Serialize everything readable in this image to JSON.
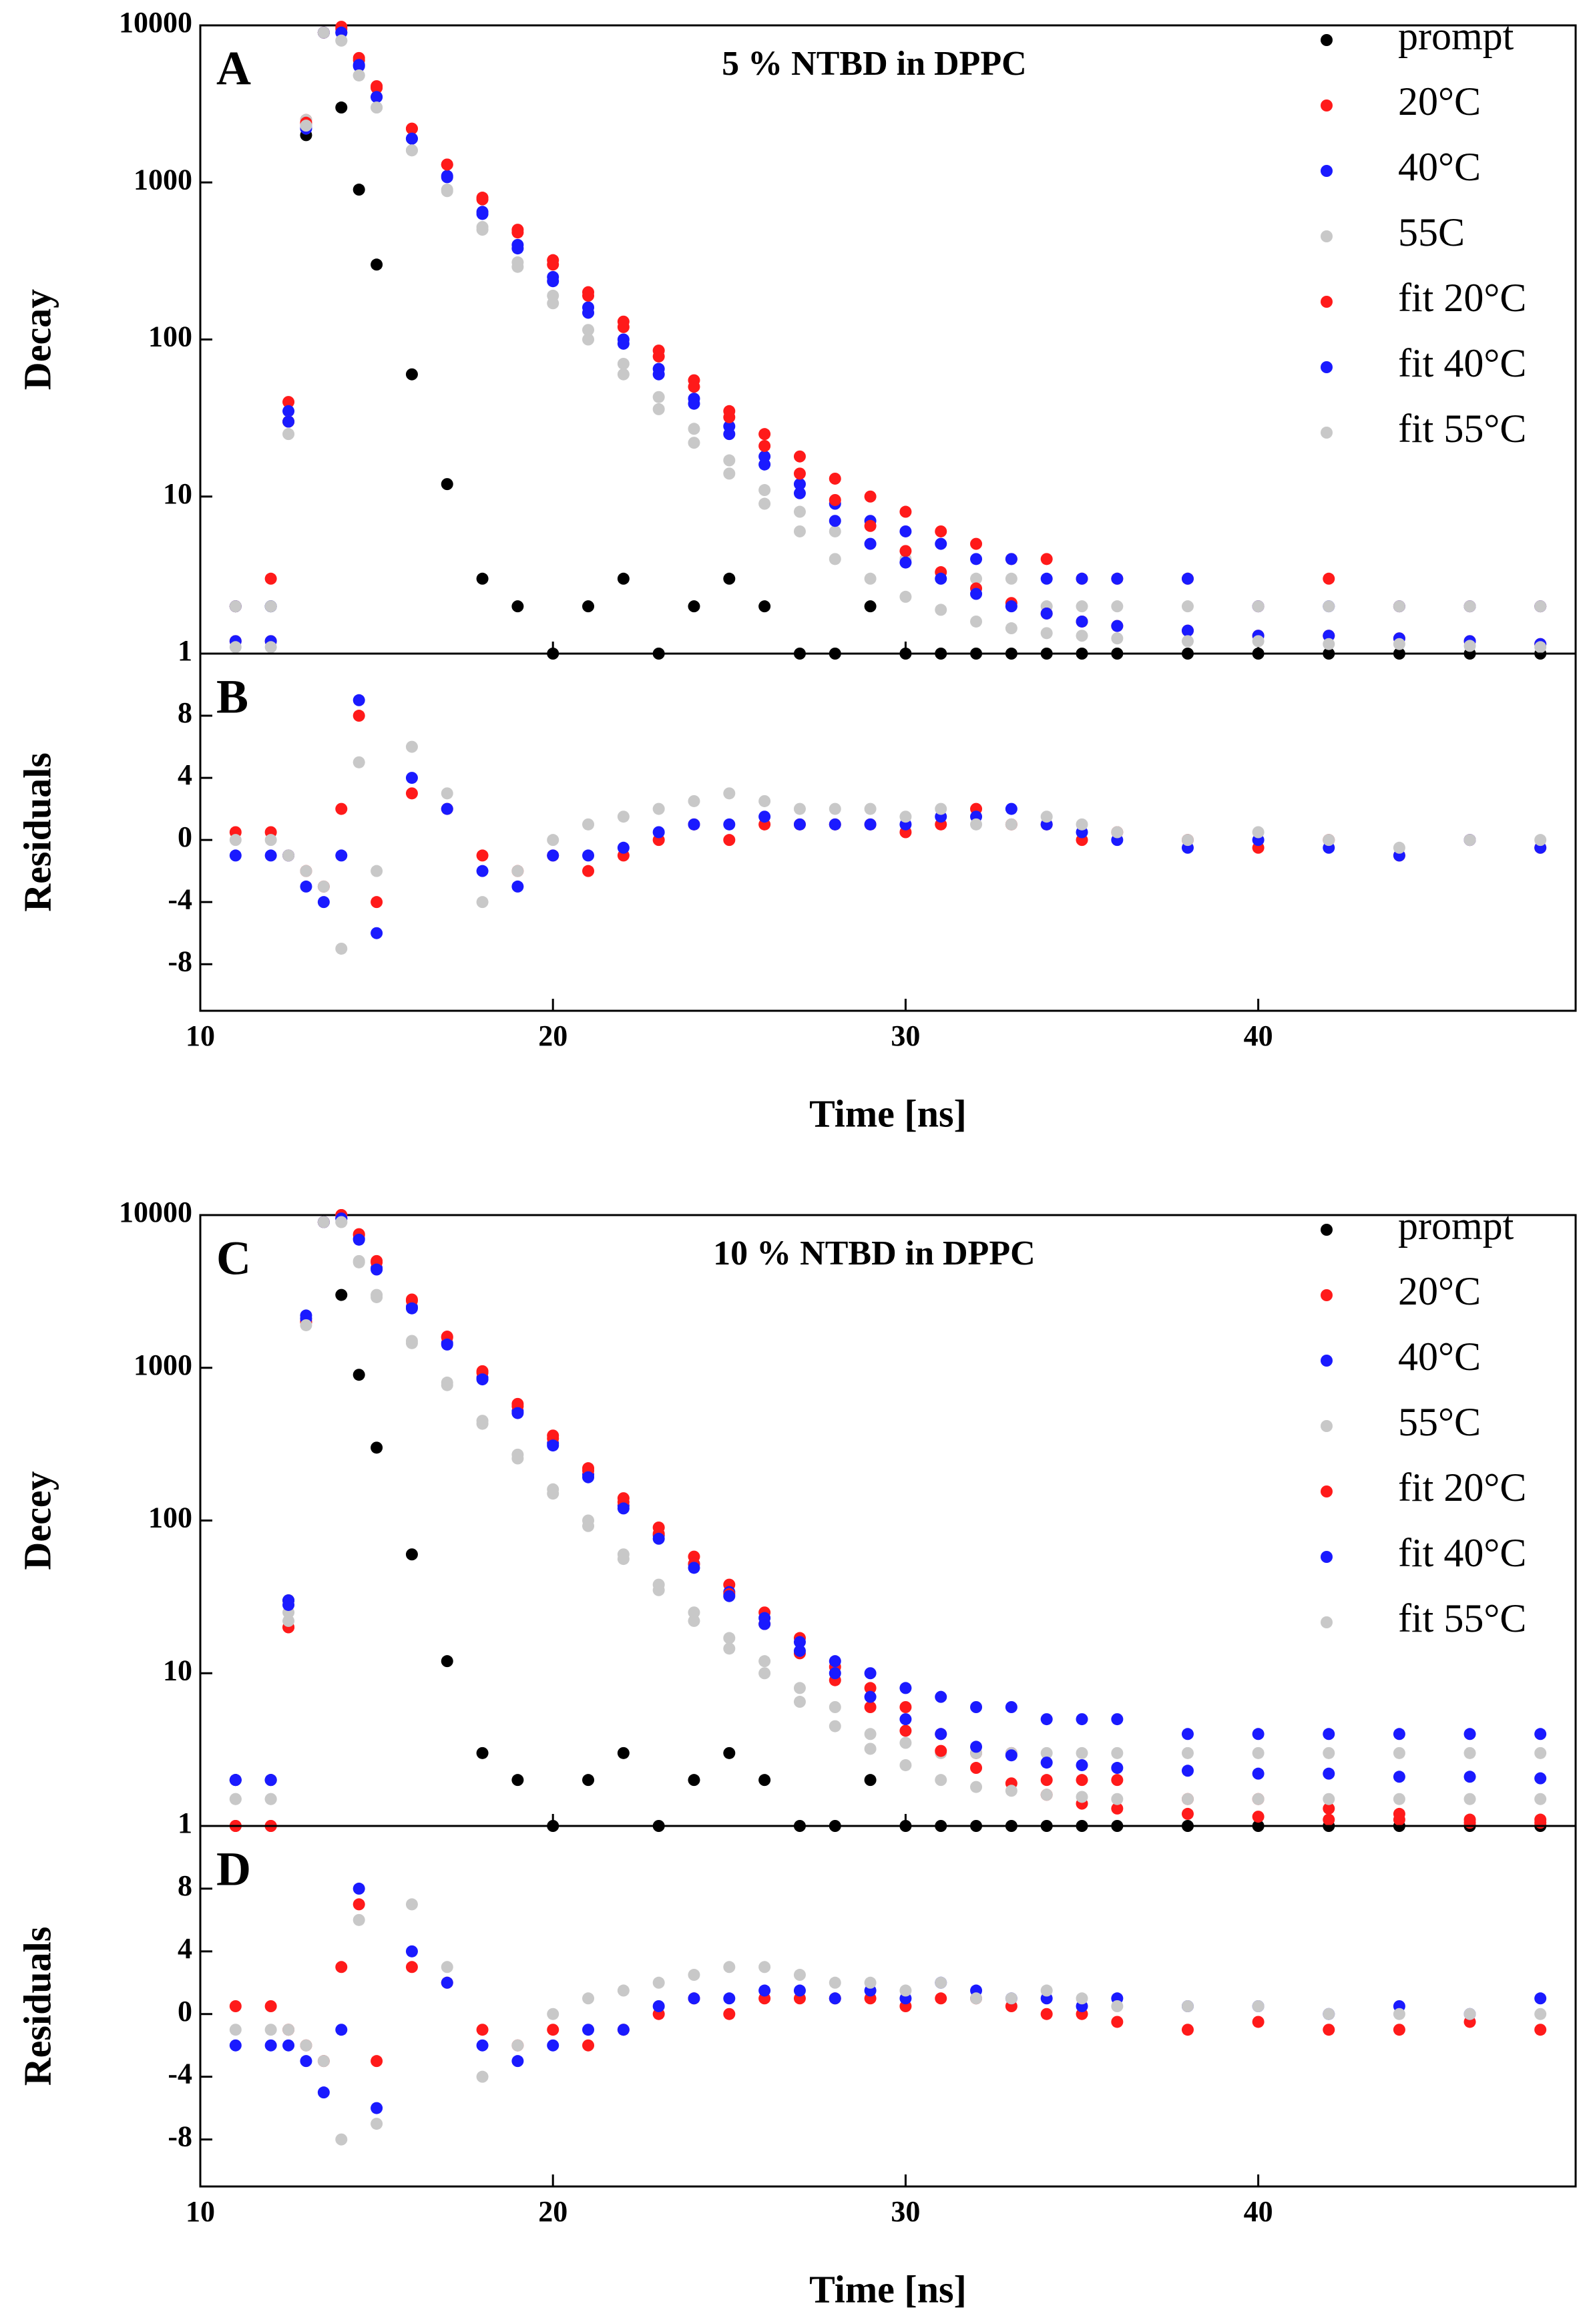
{
  "chart_data": [
    {
      "type": "scatter",
      "label": "A",
      "title": "5 % NTBD in DPPC",
      "ylabel": "Decay",
      "yscale": "log",
      "xlim": [
        10,
        49
      ],
      "xticks": [
        10,
        20,
        30,
        40
      ],
      "ylim": [
        1,
        10000
      ],
      "yticks": [
        1,
        10,
        100,
        1000,
        10000
      ],
      "legend": "upper right",
      "x": [
        11,
        12,
        12.5,
        13,
        13.5,
        14,
        14.5,
        15,
        16,
        17,
        18,
        19,
        20,
        21,
        22,
        23,
        24,
        25,
        26,
        27,
        28,
        29,
        30,
        31,
        32,
        33,
        34,
        35,
        36,
        38,
        40,
        42,
        44,
        46,
        48
      ],
      "series": [
        {
          "name": "prompt",
          "color": "#000000",
          "values": [
            2,
            2,
            30,
            2000,
            9000,
            3000,
            900,
            300,
            60,
            12,
            3,
            2,
            1,
            2,
            3,
            1,
            2,
            3,
            2,
            1,
            1,
            2,
            1,
            1,
            1,
            1,
            1,
            1,
            1,
            1,
            1,
            1,
            1,
            1,
            1
          ]
        },
        {
          "name": "20°C",
          "color": "#ff1a1a",
          "values": [
            2,
            3,
            40,
            2500,
            9000,
            9500,
            6000,
            4000,
            2200,
            1300,
            800,
            500,
            320,
            200,
            130,
            85,
            55,
            35,
            25,
            18,
            13,
            10,
            8,
            6,
            5,
            4,
            4,
            3,
            3,
            3,
            2,
            3,
            2,
            2,
            2
          ]
        },
        {
          "name": "40°C",
          "color": "#1a1aff",
          "values": [
            2,
            2,
            35,
            2300,
            9000,
            9000,
            5500,
            3500,
            1900,
            1100,
            650,
            400,
            250,
            160,
            100,
            65,
            42,
            28,
            18,
            12,
            9,
            7,
            6,
            5,
            4,
            4,
            3,
            3,
            3,
            3,
            2,
            2,
            2,
            2,
            2
          ]
        },
        {
          "name": "55C",
          "color": "#c8c8c8",
          "values": [
            2,
            2,
            30,
            2500,
            9000,
            8000,
            4800,
            3000,
            1600,
            900,
            520,
            310,
            190,
            115,
            70,
            43,
            27,
            17,
            11,
            8,
            6,
            5,
            4,
            3,
            3,
            3,
            2,
            2,
            2,
            2,
            2,
            2,
            2,
            2,
            2
          ]
        },
        {
          "name": "fit 20°C",
          "color": "#ff1a1a",
          "values": [
            1.2,
            1.2,
            30,
            2400,
            9000,
            9800,
            6200,
            4100,
            2200,
            1300,
            780,
            480,
            300,
            190,
            120,
            78,
            50,
            32,
            21,
            14,
            9.5,
            6.5,
            4.5,
            3.3,
            2.6,
            2.1,
            1.8,
            1.6,
            1.5,
            1.4,
            1.3,
            1.3,
            1.25,
            1.2,
            1.15
          ]
        },
        {
          "name": "fit 40°C",
          "color": "#1a1aff",
          "values": [
            1.2,
            1.2,
            30,
            2200,
            9000,
            9000,
            5600,
            3500,
            1900,
            1080,
            630,
            380,
            235,
            148,
            94,
            60,
            39,
            25,
            16,
            10.5,
            7,
            5,
            3.8,
            3,
            2.4,
            2,
            1.8,
            1.6,
            1.5,
            1.4,
            1.3,
            1.3,
            1.25,
            1.2,
            1.15
          ]
        },
        {
          "name": "fit 55°C",
          "color": "#c8c8c8",
          "values": [
            1.1,
            1.1,
            25,
            2300,
            9000,
            8000,
            4800,
            3000,
            1600,
            880,
            500,
            290,
            170,
            100,
            60,
            36,
            22,
            14,
            9,
            6,
            4,
            3,
            2.3,
            1.9,
            1.6,
            1.45,
            1.35,
            1.3,
            1.25,
            1.2,
            1.2,
            1.15,
            1.15,
            1.12,
            1.1
          ]
        }
      ]
    },
    {
      "type": "scatter",
      "label": "B",
      "ylabel": "Residuals",
      "xlabel": "Time [ns]",
      "xlim": [
        10,
        49
      ],
      "xticks": [
        10,
        20,
        30,
        40
      ],
      "ylim": [
        -11,
        12
      ],
      "yticks": [
        -8,
        -4,
        0,
        4,
        8
      ],
      "x": [
        11,
        12,
        12.5,
        13,
        13.5,
        14,
        14.5,
        15,
        16,
        17,
        18,
        19,
        20,
        21,
        22,
        23,
        24,
        25,
        26,
        27,
        28,
        29,
        30,
        31,
        32,
        33,
        34,
        35,
        36,
        38,
        40,
        42,
        44,
        46,
        48
      ],
      "series": [
        {
          "color": "#ff1a1a",
          "values": [
            0.5,
            0.5,
            -1,
            -2,
            -3,
            2,
            8,
            -4,
            3,
            2,
            -1,
            -2,
            -1,
            -2,
            -1,
            0,
            1,
            0,
            1,
            1,
            1,
            1,
            0.5,
            1,
            2,
            1,
            1,
            0,
            0.5,
            0,
            -0.5,
            0,
            -1,
            0,
            -0.5
          ]
        },
        {
          "color": "#1a1aff",
          "values": [
            -1,
            -1,
            -1,
            -3,
            -4,
            -1,
            9,
            -6,
            4,
            2,
            -2,
            -3,
            -1,
            -1,
            -0.5,
            0.5,
            1,
            1,
            1.5,
            1,
            1,
            1,
            1,
            1.5,
            1.5,
            2,
            1,
            0.5,
            0,
            -0.5,
            0,
            -0.5,
            -1,
            0,
            -0.5
          ]
        },
        {
          "color": "#c8c8c8",
          "values": [
            0,
            0,
            -1,
            -2,
            -3,
            -7,
            5,
            -2,
            6,
            3,
            -4,
            -2,
            0,
            1,
            1.5,
            2,
            2.5,
            3,
            2.5,
            2,
            2,
            2,
            1.5,
            2,
            1,
            1,
            1.5,
            1,
            0.5,
            0,
            0.5,
            0,
            -0.5,
            0,
            0
          ]
        }
      ]
    },
    {
      "type": "scatter",
      "label": "C",
      "title": "10 % NTBD in DPPC",
      "ylabel": "Decey",
      "yscale": "log",
      "xlim": [
        10,
        49
      ],
      "xticks": [
        10,
        20,
        30,
        40
      ],
      "ylim": [
        1,
        10000
      ],
      "yticks": [
        1,
        10,
        100,
        1000,
        10000
      ],
      "legend": "upper right",
      "x": [
        11,
        12,
        12.5,
        13,
        13.5,
        14,
        14.5,
        15,
        16,
        17,
        18,
        19,
        20,
        21,
        22,
        23,
        24,
        25,
        26,
        27,
        28,
        29,
        30,
        31,
        32,
        33,
        34,
        35,
        36,
        38,
        40,
        42,
        44,
        46,
        48
      ],
      "series": [
        {
          "name": "prompt",
          "color": "#000000",
          "values": [
            2,
            2,
            30,
            2000,
            9000,
            3000,
            900,
            300,
            60,
            12,
            3,
            2,
            1,
            2,
            3,
            1,
            2,
            3,
            2,
            1,
            1,
            2,
            1,
            1,
            1,
            1,
            1,
            1,
            1,
            1,
            1,
            1,
            1,
            1,
            1
          ]
        },
        {
          "name": "20°C",
          "color": "#ff1a1a",
          "values": [
            1,
            1,
            20,
            2000,
            9000,
            10000,
            7500,
            5000,
            2800,
            1600,
            950,
            580,
            360,
            220,
            140,
            90,
            58,
            38,
            25,
            17,
            11,
            8,
            6,
            4,
            3,
            3,
            2,
            2,
            2,
            1.5,
            1.5,
            1.3,
            1.2,
            1.1,
            1.1
          ]
        },
        {
          "name": "40°C",
          "color": "#1a1aff",
          "values": [
            2,
            2,
            30,
            2200,
            9000,
            9500,
            7000,
            4500,
            2500,
            1450,
            860,
            520,
            320,
            200,
            125,
            80,
            52,
            34,
            23,
            16,
            12,
            10,
            8,
            7,
            6,
            6,
            5,
            5,
            5,
            4,
            4,
            4,
            4,
            4,
            4
          ]
        },
        {
          "name": "55°C",
          "color": "#c8c8c8",
          "values": [
            1.5,
            1.5,
            25,
            2000,
            9000,
            9000,
            5000,
            3000,
            1500,
            800,
            450,
            270,
            160,
            100,
            60,
            38,
            25,
            17,
            12,
            8,
            6,
            4,
            3.5,
            3,
            3,
            3,
            3,
            3,
            3,
            3,
            3,
            3,
            3,
            3,
            3
          ]
        },
        {
          "name": "fit 20°C",
          "color": "#ff1a1a",
          "values": [
            1,
            1,
            20,
            2000,
            9000,
            10000,
            7400,
            4900,
            2750,
            1580,
            930,
            560,
            345,
            212,
            132,
            82,
            52,
            33,
            21,
            13.5,
            9,
            6,
            4.2,
            3.1,
            2.4,
            1.9,
            1.6,
            1.4,
            1.3,
            1.2,
            1.15,
            1.1,
            1.1,
            1.05,
            1.05
          ]
        },
        {
          "name": "fit 40°C",
          "color": "#1a1aff",
          "values": [
            2,
            2,
            28,
            2100,
            9000,
            9500,
            6900,
            4400,
            2450,
            1420,
            840,
            505,
            310,
            192,
            120,
            76,
            49,
            32,
            21,
            14,
            10,
            7,
            5,
            4,
            3.3,
            2.9,
            2.6,
            2.5,
            2.4,
            2.3,
            2.2,
            2.2,
            2.1,
            2.1,
            2.05
          ]
        },
        {
          "name": "fit 55°C",
          "color": "#c8c8c8",
          "values": [
            1.5,
            1.5,
            22,
            1900,
            9000,
            9000,
            4900,
            2900,
            1450,
            770,
            430,
            255,
            150,
            92,
            56,
            35,
            22,
            14.5,
            10,
            6.5,
            4.5,
            3.2,
            2.5,
            2,
            1.8,
            1.7,
            1.6,
            1.55,
            1.5,
            1.5,
            1.5,
            1.5,
            1.5,
            1.5,
            1.5
          ]
        }
      ]
    },
    {
      "type": "scatter",
      "label": "D",
      "ylabel": "Residuals",
      "xlabel": "Time [ns]",
      "xlim": [
        10,
        49
      ],
      "xticks": [
        10,
        20,
        30,
        40
      ],
      "ylim": [
        -11,
        12
      ],
      "yticks": [
        -8,
        -4,
        0,
        4,
        8
      ],
      "x": [
        11,
        12,
        12.5,
        13,
        13.5,
        14,
        14.5,
        15,
        16,
        17,
        18,
        19,
        20,
        21,
        22,
        23,
        24,
        25,
        26,
        27,
        28,
        29,
        30,
        31,
        32,
        33,
        34,
        35,
        36,
        38,
        40,
        42,
        44,
        46,
        48
      ],
      "series": [
        {
          "color": "#ff1a1a",
          "values": [
            0.5,
            0.5,
            -1,
            -2,
            -3,
            3,
            7,
            -3,
            3,
            2,
            -1,
            -2,
            -1,
            -2,
            -1,
            0,
            1,
            0,
            1,
            1,
            1,
            1,
            0.5,
            1,
            1,
            0.5,
            0,
            0,
            -0.5,
            -1,
            -0.5,
            -1,
            -1,
            -0.5,
            -1
          ]
        },
        {
          "color": "#1a1aff",
          "values": [
            -2,
            -2,
            -2,
            -3,
            -5,
            -1,
            8,
            -6,
            4,
            2,
            -2,
            -3,
            -2,
            -1,
            -1,
            0.5,
            1,
            1,
            1.5,
            1.5,
            1,
            1.5,
            1,
            2,
            1.5,
            1,
            1,
            0.5,
            1,
            0.5,
            0.5,
            0,
            0.5,
            0,
            1
          ]
        },
        {
          "color": "#c8c8c8",
          "values": [
            -1,
            -1,
            -1,
            -2,
            -3,
            -8,
            6,
            -7,
            7,
            3,
            -4,
            -2,
            0,
            1,
            1.5,
            2,
            2.5,
            3,
            3,
            2.5,
            2,
            2,
            1.5,
            2,
            1,
            1,
            1.5,
            1,
            0.5,
            0.5,
            0.5,
            0,
            0,
            0,
            0
          ]
        }
      ]
    }
  ]
}
